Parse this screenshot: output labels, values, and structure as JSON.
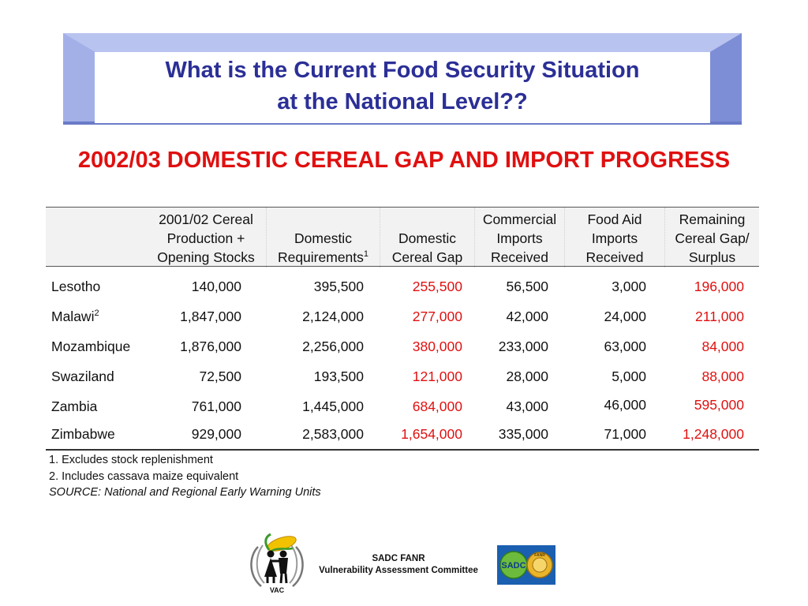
{
  "title": {
    "line1": "What is the Current Food Security Situation",
    "line2": "at the National Level??"
  },
  "subtitle": "2002/03 DOMESTIC CEREAL GAP AND IMPORT PROGRESS",
  "table": {
    "headers": {
      "production": [
        "2001/02 Cereal",
        "Production +",
        "Opening Stocks"
      ],
      "requirements": [
        "Domestic",
        "Requirements"
      ],
      "requirements_note": "1",
      "gap": [
        "Domestic",
        "Cereal Gap"
      ],
      "commercial": [
        "Commercial",
        "Imports",
        "Received"
      ],
      "food_aid": [
        "Food Aid",
        "Imports",
        "Received"
      ],
      "remaining": [
        "Remaining",
        "Cereal Gap/",
        "Surplus"
      ]
    },
    "rows": [
      {
        "country": "Lesotho",
        "note": "",
        "production": "140,000",
        "requirements": "395,500",
        "gap": "255,500",
        "commercial": "56,500",
        "food_aid": "3,000",
        "remaining": "196,000"
      },
      {
        "country": "Malawi",
        "note": "2",
        "production": "1,847,000",
        "requirements": "2,124,000",
        "gap": "277,000",
        "commercial": "42,000",
        "food_aid": "24,000",
        "remaining": "211,000"
      },
      {
        "country": "Mozambique",
        "note": "",
        "production": "1,876,000",
        "requirements": "2,256,000",
        "gap": "380,000",
        "commercial": "233,000",
        "food_aid": "63,000",
        "remaining": "84,000"
      },
      {
        "country": "Swaziland",
        "note": "",
        "production": "72,500",
        "requirements": "193,500",
        "gap": "121,000",
        "commercial": "28,000",
        "food_aid": "5,000",
        "remaining": "88,000"
      },
      {
        "country": "Zambia",
        "note": "",
        "production": "761,000",
        "requirements": "1,445,000",
        "gap": "684,000",
        "commercial": "43,000",
        "food_aid": "46,000",
        "remaining": "595,000"
      },
      {
        "country": "Zimbabwe",
        "note": "",
        "production": "929,000",
        "requirements": "2,583,000",
        "gap": "1,654,000",
        "commercial": "335,000",
        "food_aid": "71,000",
        "remaining": "1,248,000"
      }
    ]
  },
  "footnotes": {
    "note1": "1. Excludes stock replenishment",
    "note2": "2. Includes cassava maize equivalent",
    "source": "SOURCE: National and Regional Early Warning Units"
  },
  "footer": {
    "org_line1": "SADC FANR",
    "org_line2": "Vulnerability Assessment Committee",
    "vac_label": "VAC",
    "sadc_label": "SADC",
    "fanr_label": "FANR"
  },
  "colors": {
    "title_text": "#2b2f96",
    "highlight_red": "#e01010",
    "frame_blue": "#8f9fe0",
    "header_gray": "#f2f2f2"
  }
}
